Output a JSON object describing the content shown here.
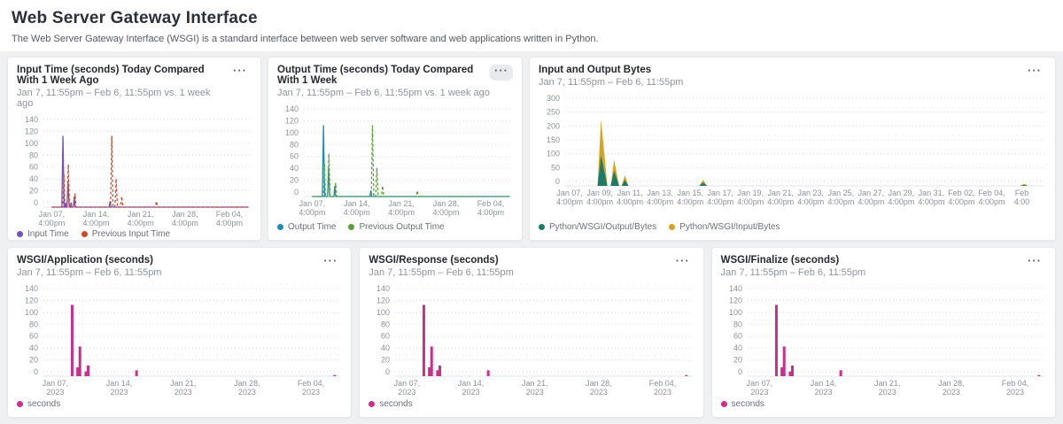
{
  "header": {
    "title": "Web Server Gateway Interface",
    "subtitle": "The Web Server Gateway Interface (WSGI) is a standard interface between web server software and web applications written in Python."
  },
  "icons": {
    "ellipsis_menu": "···"
  },
  "panels": [
    {
      "title": "Input Time (seconds) Today Compared With 1 Week Ago",
      "subtitle": "Jan 7, 11:55pm – Feb 6, 11:55pm vs. 1 week ago",
      "legend": [
        {
          "label": "Input Time",
          "color": "#7550ba"
        },
        {
          "label": "Previous Input Time",
          "color": "#cb4b2c"
        }
      ]
    },
    {
      "title": "Output Time (seconds) Today Compared With 1 Week",
      "subtitle": "Jan 7, 11:55pm – Feb 6, 11:55pm vs. 1 week ago",
      "legend": [
        {
          "label": "Output Time",
          "color": "#1e8bb4"
        },
        {
          "label": "Previous Output Time",
          "color": "#56a035"
        }
      ]
    },
    {
      "title": "Input and Output Bytes",
      "subtitle": "Jan 7, 11:55pm – Feb 6, 11:55pm",
      "legend": [
        {
          "label": "Python/WSGI/Output/Bytes",
          "color": "#1e7b6a"
        },
        {
          "label": "Python/WSGI/Input/Bytes",
          "color": "#d7a31c"
        }
      ]
    },
    {
      "title": "WSGI/Application (seconds)",
      "subtitle": "Jan 7, 11:55pm – Feb 6, 11:55pm",
      "legend": [
        {
          "label": "seconds",
          "color": "#cb2f8d"
        }
      ]
    },
    {
      "title": "WSGI/Response (seconds)",
      "subtitle": "Jan 7, 11:55pm – Feb 6, 11:55pm",
      "legend": [
        {
          "label": "seconds",
          "color": "#cb2f8d"
        }
      ]
    },
    {
      "title": "WSGI/Finalize (seconds)",
      "subtitle": "Jan 7, 11:55pm – Feb 6, 11:55pm",
      "legend": [
        {
          "label": "seconds",
          "color": "#cb2f8d"
        }
      ]
    }
  ],
  "chart_data": [
    {
      "type": "line",
      "title": "Input Time (seconds) Today Compared With 1 Week Ago",
      "ylabel": "seconds",
      "ylim": [
        0,
        140
      ],
      "yticks": [
        0,
        20,
        40,
        60,
        80,
        100,
        120,
        140
      ],
      "xlim": [
        -1.3,
        31.2
      ],
      "xticks": [
        {
          "p": 0,
          "l1": "Jan 07,",
          "l2": "4:00pm"
        },
        {
          "p": 7,
          "l1": "Jan 14,",
          "l2": "4:00pm"
        },
        {
          "p": 14,
          "l1": "Jan 21,",
          "l2": "4:00pm"
        },
        {
          "p": 21,
          "l1": "Jan 28,",
          "l2": "4:00pm"
        },
        {
          "p": 28,
          "l1": "Feb 04,",
          "l2": "4:00pm"
        }
      ],
      "series": [
        {
          "name": "Input Time",
          "color": "#7550ba",
          "dash": false,
          "values": [
            [
              0,
              0
            ],
            [
              1.6,
              0
            ],
            [
              1.78,
              120
            ],
            [
              1.96,
              0
            ],
            [
              2.12,
              0
            ],
            [
              2.2,
              8
            ],
            [
              2.28,
              0
            ],
            [
              2.42,
              0
            ],
            [
              2.58,
              45
            ],
            [
              2.76,
              0
            ],
            [
              2.96,
              0
            ],
            [
              3.06,
              8
            ],
            [
              3.16,
              0
            ],
            [
              3.42,
              0
            ],
            [
              3.55,
              18
            ],
            [
              3.7,
              0
            ],
            [
              9.05,
              0
            ],
            [
              9.2,
              10
            ],
            [
              9.35,
              0
            ],
            [
              31,
              0
            ]
          ]
        },
        {
          "name": "Previous Input Time",
          "color": "#cb4b2c",
          "dash": true,
          "values": [
            [
              0,
              0
            ],
            [
              1.76,
              0
            ],
            [
              1.93,
              55
            ],
            [
              2.1,
              0
            ],
            [
              2.44,
              0
            ],
            [
              2.62,
              72
            ],
            [
              2.82,
              0
            ],
            [
              3.52,
              0
            ],
            [
              3.68,
              23
            ],
            [
              3.85,
              0
            ],
            [
              9.28,
              0
            ],
            [
              9.46,
              120
            ],
            [
              9.66,
              0
            ],
            [
              9.96,
              0
            ],
            [
              10.15,
              48
            ],
            [
              10.36,
              0
            ],
            [
              10.86,
              0
            ],
            [
              11.04,
              18
            ],
            [
              11.24,
              0
            ],
            [
              16.32,
              0
            ],
            [
              16.5,
              10
            ],
            [
              16.68,
              0
            ],
            [
              31,
              0
            ]
          ]
        }
      ]
    },
    {
      "type": "line",
      "title": "Output Time (seconds) Today Compared With 1 Week",
      "ylabel": "seconds",
      "ylim": [
        0,
        140
      ],
      "yticks": [
        0,
        20,
        40,
        60,
        80,
        100,
        120,
        140
      ],
      "xlim": [
        -1.3,
        31.2
      ],
      "xticks": [
        {
          "p": 0,
          "l1": "Jan 07,",
          "l2": "4:00pm"
        },
        {
          "p": 7,
          "l1": "Jan 14,",
          "l2": "4:00pm"
        },
        {
          "p": 14,
          "l1": "Jan 21,",
          "l2": "4:00pm"
        },
        {
          "p": 21,
          "l1": "Jan 28,",
          "l2": "4:00pm"
        },
        {
          "p": 28,
          "l1": "Feb 04,",
          "l2": "4:00pm"
        }
      ],
      "series": [
        {
          "name": "Output Time",
          "color": "#1e8bb4",
          "dash": false,
          "values": [
            [
              0,
              0
            ],
            [
              1.6,
              0
            ],
            [
              1.78,
              120
            ],
            [
              1.96,
              0
            ],
            [
              2.42,
              0
            ],
            [
              2.58,
              48
            ],
            [
              2.76,
              0
            ],
            [
              3.42,
              0
            ],
            [
              3.55,
              18
            ],
            [
              3.7,
              0
            ],
            [
              9.05,
              0
            ],
            [
              9.2,
              10
            ],
            [
              9.35,
              0
            ],
            [
              31,
              0
            ]
          ]
        },
        {
          "name": "Previous Output Time",
          "color": "#56a035",
          "dash": true,
          "values": [
            [
              0,
              0
            ],
            [
              1.76,
              0
            ],
            [
              1.93,
              55
            ],
            [
              2.1,
              0
            ],
            [
              2.44,
              0
            ],
            [
              2.62,
              72
            ],
            [
              2.82,
              0
            ],
            [
              3.52,
              0
            ],
            [
              3.68,
              23
            ],
            [
              3.85,
              0
            ],
            [
              9.28,
              0
            ],
            [
              9.46,
              120
            ],
            [
              9.66,
              0
            ],
            [
              9.96,
              0
            ],
            [
              10.15,
              48
            ],
            [
              10.36,
              0
            ],
            [
              10.86,
              0
            ],
            [
              11.04,
              18
            ],
            [
              11.24,
              0
            ],
            [
              16.32,
              0
            ],
            [
              16.5,
              10
            ],
            [
              16.68,
              0
            ],
            [
              31,
              0
            ]
          ]
        }
      ]
    },
    {
      "type": "area",
      "title": "Input and Output Bytes",
      "ylabel": "bytes",
      "ylim": [
        0,
        300
      ],
      "yticks": [
        0,
        50,
        100,
        150,
        200,
        250,
        300
      ],
      "xlim": [
        -0.3,
        31.5
      ],
      "x": [
        0,
        1.85,
        2.08,
        2.5,
        2.72,
        2.95,
        3.28,
        3.45,
        3.66,
        3.9,
        8.6,
        8.85,
        9.12,
        29.9,
        30.15,
        30.4,
        31.2
      ],
      "xticks": [
        {
          "p": 0,
          "l1": "Jan 07,",
          "l2": "4:00pm"
        },
        {
          "p": 2,
          "l1": "Jan 09,",
          "l2": "4:00pm"
        },
        {
          "p": 4,
          "l1": "Jan 11,",
          "l2": "4:00pm"
        },
        {
          "p": 6,
          "l1": "Jan 13,",
          "l2": "4:00pm"
        },
        {
          "p": 8,
          "l1": "Jan 15,",
          "l2": "4:00pm"
        },
        {
          "p": 10,
          "l1": "Jan 17,",
          "l2": "4:00pm"
        },
        {
          "p": 12,
          "l1": "Jan 19,",
          "l2": "4:00pm"
        },
        {
          "p": 14,
          "l1": "Jan 21,",
          "l2": "4:00pm"
        },
        {
          "p": 16,
          "l1": "Jan 23,",
          "l2": "4:00pm"
        },
        {
          "p": 18,
          "l1": "Jan 25,",
          "l2": "4:00pm"
        },
        {
          "p": 20,
          "l1": "Jan 27,",
          "l2": "4:00pm"
        },
        {
          "p": 22,
          "l1": "Jan 29,",
          "l2": "4:00pm"
        },
        {
          "p": 24,
          "l1": "Jan 31,",
          "l2": "4:00pm"
        },
        {
          "p": 26,
          "l1": "Feb 02,",
          "l2": "4:00pm"
        },
        {
          "p": 28,
          "l1": "Feb 04,",
          "l2": "4:00pm"
        },
        {
          "p": 30,
          "l1": "Feb",
          "l2": "4:00"
        }
      ],
      "series": [
        {
          "name": "Python/WSGI/Output/Bytes",
          "color": "#1e7b6a",
          "values": [
            0,
            0,
            110,
            0,
            0,
            55,
            0,
            0,
            22,
            0,
            0,
            12,
            0,
            0,
            3,
            0,
            0
          ]
        },
        {
          "name": "Python/WSGI/Input/Bytes",
          "color": "#d7a31c",
          "values": [
            0,
            0,
            130,
            0,
            0,
            40,
            0,
            0,
            16,
            0,
            0,
            9,
            0,
            0,
            5,
            0,
            0
          ]
        }
      ]
    },
    {
      "type": "bar",
      "title": "WSGI/Application (seconds)",
      "ylabel": "seconds",
      "ylim": [
        0,
        140
      ],
      "yticks": [
        0,
        20,
        40,
        60,
        80,
        100,
        120,
        140
      ],
      "xlim": [
        -1.3,
        31.2
      ],
      "xticks": [
        {
          "p": 0,
          "l1": "Jan 07,",
          "l2": "2023"
        },
        {
          "p": 7,
          "l1": "Jan 14,",
          "l2": "2023"
        },
        {
          "p": 14,
          "l1": "Jan 21,",
          "l2": "2023"
        },
        {
          "p": 21,
          "l1": "Jan 28,",
          "l2": "2023"
        },
        {
          "p": 28,
          "l1": "Feb 04,",
          "l2": "2023"
        }
      ],
      "series": [
        {
          "name": "seconds",
          "color": "#cb2f8d",
          "type": "bar",
          "values": [
            [
              1.85,
              120
            ],
            [
              2.45,
              15
            ],
            [
              2.7,
              50
            ],
            [
              3.35,
              8
            ],
            [
              3.6,
              18
            ],
            [
              8.9,
              10
            ],
            [
              30.6,
              2
            ]
          ]
        }
      ]
    },
    {
      "type": "bar",
      "title": "WSGI/Response (seconds)",
      "ylabel": "seconds",
      "ylim": [
        0,
        140
      ],
      "yticks": [
        0,
        20,
        40,
        60,
        80,
        100,
        120,
        140
      ],
      "xlim": [
        -1.3,
        31.2
      ],
      "xticks": [
        {
          "p": 0,
          "l1": "Jan 07,",
          "l2": "2023"
        },
        {
          "p": 7,
          "l1": "Jan 14,",
          "l2": "2023"
        },
        {
          "p": 14,
          "l1": "Jan 21,",
          "l2": "2023"
        },
        {
          "p": 21,
          "l1": "Jan 28,",
          "l2": "2023"
        },
        {
          "p": 28,
          "l1": "Feb 04,",
          "l2": "2023"
        }
      ],
      "series": [
        {
          "name": "seconds",
          "color": "#cb2f8d",
          "type": "bar",
          "values": [
            [
              1.85,
              120
            ],
            [
              2.45,
              15
            ],
            [
              2.7,
              50
            ],
            [
              3.35,
              10
            ],
            [
              3.6,
              18
            ],
            [
              8.9,
              10
            ],
            [
              30.6,
              2
            ]
          ]
        }
      ]
    },
    {
      "type": "bar",
      "title": "WSGI/Finalize (seconds)",
      "ylabel": "seconds",
      "ylim": [
        0,
        140
      ],
      "yticks": [
        0,
        20,
        40,
        60,
        80,
        100,
        120,
        140
      ],
      "xlim": [
        -1.3,
        31.2
      ],
      "xticks": [
        {
          "p": 0,
          "l1": "Jan 07,",
          "l2": "2023"
        },
        {
          "p": 7,
          "l1": "Jan 14,",
          "l2": "2023"
        },
        {
          "p": 14,
          "l1": "Jan 21,",
          "l2": "2023"
        },
        {
          "p": 21,
          "l1": "Jan 28,",
          "l2": "2023"
        },
        {
          "p": 28,
          "l1": "Feb 04,",
          "l2": "2023"
        }
      ],
      "series": [
        {
          "name": "seconds",
          "color": "#cb2f8d",
          "type": "bar",
          "values": [
            [
              1.85,
              120
            ],
            [
              2.45,
              15
            ],
            [
              2.7,
              50
            ],
            [
              3.35,
              8
            ],
            [
              3.6,
              18
            ],
            [
              8.9,
              10
            ],
            [
              30.6,
              2
            ]
          ]
        }
      ]
    }
  ]
}
